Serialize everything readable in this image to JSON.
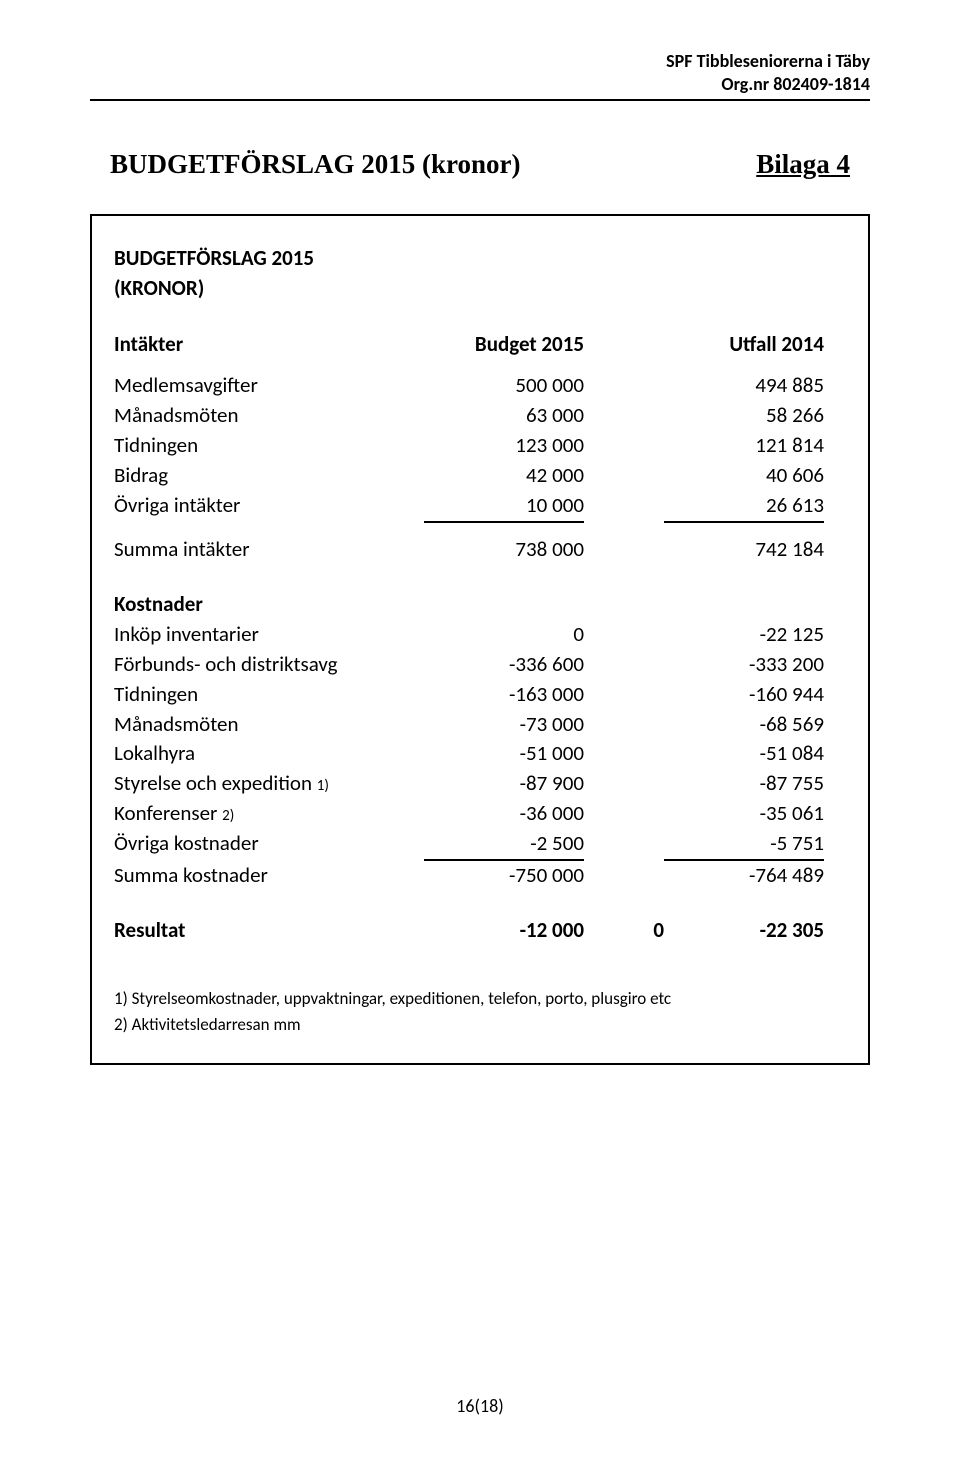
{
  "header": {
    "org_name": "SPF Tibbleseniorerna i Täby",
    "org_nr": "Org.nr 802409-1814"
  },
  "title": {
    "left": "BUDGETFÖRSLAG 2015 (kronor)",
    "right": "Bilaga 4"
  },
  "box_title_line1": "BUDGETFÖRSLAG 2015",
  "box_title_line2": "(KRONOR)",
  "col_headers": {
    "label": "Intäkter",
    "budget": "Budget 2015",
    "utfall": "Utfall 2014"
  },
  "intakter_rows": [
    {
      "label": "Medlemsavgifter",
      "budget": "500 000",
      "utfall": "494 885"
    },
    {
      "label": "Månadsmöten",
      "budget": "63 000",
      "utfall": "58 266"
    },
    {
      "label": "Tidningen",
      "budget": "123 000",
      "utfall": "121 814"
    },
    {
      "label": "Bidrag",
      "budget": "42 000",
      "utfall": "40 606"
    },
    {
      "label": "Övriga intäkter",
      "budget": "10 000",
      "utfall": "26 613"
    }
  ],
  "summa_intakter": {
    "label": "Summa intäkter",
    "budget": "738 000",
    "utfall": "742 184"
  },
  "kostnader_heading": "Kostnader",
  "kostnader_rows": [
    {
      "label": "Inköp inventarier",
      "budget": "0",
      "utfall": "-22 125",
      "note": ""
    },
    {
      "label": "Förbunds- och distriktsavg",
      "budget": "-336 600",
      "utfall": "-333 200",
      "note": ""
    },
    {
      "label": "Tidningen",
      "budget": "-163 000",
      "utfall": "-160 944",
      "note": ""
    },
    {
      "label": "Månadsmöten",
      "budget": "-73 000",
      "utfall": "-68 569",
      "note": ""
    },
    {
      "label": "Lokalhyra",
      "budget": "-51 000",
      "utfall": "-51 084",
      "note": ""
    },
    {
      "label": "Styrelse och expedition",
      "budget": "-87 900",
      "utfall": "-87 755",
      "note": "1)"
    },
    {
      "label": "Konferenser",
      "budget": "-36 000",
      "utfall": "-35 061",
      "note": "2)"
    },
    {
      "label": "Övriga kostnader",
      "budget": "-2 500",
      "utfall": "-5 751",
      "note": ""
    }
  ],
  "summa_kostnader": {
    "label": "Summa kostnader",
    "budget": "-750 000",
    "utfall": "-764 489"
  },
  "resultat": {
    "label": "Resultat",
    "budget": "-12 000",
    "mid": "0",
    "utfall": "-22 305"
  },
  "footnotes": {
    "f1": "1) Styrelseomkostnader, uppvaktningar, expeditionen, telefon, porto, plusgiro etc",
    "f2": "2) Aktivitetsledarresan mm"
  },
  "page_number": "16(18)"
}
